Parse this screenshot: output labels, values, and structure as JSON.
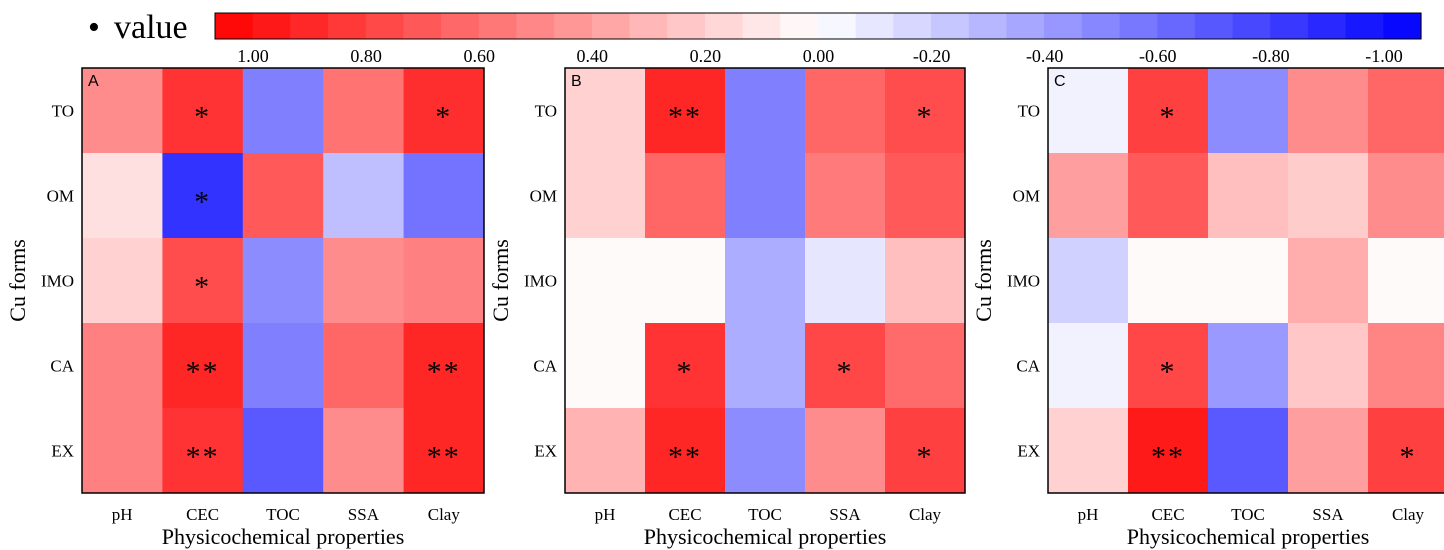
{
  "legend": {
    "marker": "•",
    "title": "value",
    "ticks": [
      "1.00",
      "0.80",
      "0.60",
      "0.40",
      "0.20",
      "0.00",
      "-0.20",
      "-0.40",
      "-0.60",
      "-0.80",
      "-1.00"
    ],
    "range": [
      1.0,
      -1.0
    ],
    "color_positive": "#ff0000",
    "color_zero": "#ffffff",
    "color_negative": "#0000ff"
  },
  "chart_data": [
    {
      "type": "heatmap",
      "panel_label": "A",
      "xlabel": "Physicochemical properties",
      "ylabel": "Cu forms",
      "x_categories": [
        "pH",
        "CEC",
        "TOC",
        "SSA",
        "Clay"
      ],
      "y_categories": [
        "TO",
        "OM",
        "IMO",
        "CA",
        "EX"
      ],
      "values": [
        [
          0.45,
          0.8,
          -0.5,
          0.55,
          0.82
        ],
        [
          0.12,
          -0.8,
          0.65,
          -0.25,
          -0.55
        ],
        [
          0.18,
          0.7,
          -0.45,
          0.45,
          0.5
        ],
        [
          0.5,
          0.85,
          -0.5,
          0.6,
          0.85
        ],
        [
          0.5,
          0.8,
          -0.65,
          0.45,
          0.85
        ]
      ],
      "significance": [
        [
          "",
          "*",
          "",
          "",
          "*"
        ],
        [
          "",
          "*",
          "",
          "",
          ""
        ],
        [
          "",
          "*",
          "",
          "",
          ""
        ],
        [
          "",
          "**",
          "",
          "",
          "**"
        ],
        [
          "",
          "**",
          "",
          "",
          "**"
        ]
      ]
    },
    {
      "type": "heatmap",
      "panel_label": "B",
      "xlabel": "Physicochemical properties",
      "ylabel": "Cu forms",
      "x_categories": [
        "pH",
        "CEC",
        "TOC",
        "SSA",
        "Clay"
      ],
      "y_categories": [
        "TO",
        "OM",
        "IMO",
        "CA",
        "EX"
      ],
      "values": [
        [
          0.18,
          0.85,
          -0.5,
          0.6,
          0.7
        ],
        [
          0.18,
          0.6,
          -0.5,
          0.52,
          0.65
        ],
        [
          0.02,
          0.02,
          -0.32,
          -0.1,
          0.25
        ],
        [
          0.02,
          0.8,
          -0.32,
          0.72,
          0.58
        ],
        [
          0.3,
          0.85,
          -0.45,
          0.45,
          0.75
        ]
      ],
      "significance": [
        [
          "",
          "**",
          "",
          "",
          "*"
        ],
        [
          "",
          "",
          "",
          "",
          ""
        ],
        [
          "",
          "",
          "",
          "",
          ""
        ],
        [
          "",
          "*",
          "",
          "*",
          ""
        ],
        [
          "",
          "**",
          "",
          "",
          "*"
        ]
      ]
    },
    {
      "type": "heatmap",
      "panel_label": "C",
      "xlabel": "Physicochemical properties",
      "ylabel": "Cu forms",
      "x_categories": [
        "pH",
        "CEC",
        "TOC",
        "SSA",
        "Clay"
      ],
      "y_categories": [
        "TO",
        "OM",
        "IMO",
        "CA",
        "EX"
      ],
      "values": [
        [
          -0.05,
          0.75,
          -0.45,
          0.45,
          0.6
        ],
        [
          0.38,
          0.65,
          0.25,
          0.2,
          0.45
        ],
        [
          -0.18,
          0.02,
          0.02,
          0.32,
          0.02
        ],
        [
          -0.05,
          0.72,
          -0.4,
          0.22,
          0.48
        ],
        [
          0.18,
          0.9,
          -0.65,
          0.38,
          0.75
        ]
      ],
      "significance": [
        [
          "",
          "*",
          "",
          "",
          ""
        ],
        [
          "",
          "",
          "",
          "",
          ""
        ],
        [
          "",
          "",
          "",
          "",
          ""
        ],
        [
          "",
          "*",
          "",
          "",
          ""
        ],
        [
          "",
          "**",
          "",
          "",
          "*"
        ]
      ]
    }
  ]
}
